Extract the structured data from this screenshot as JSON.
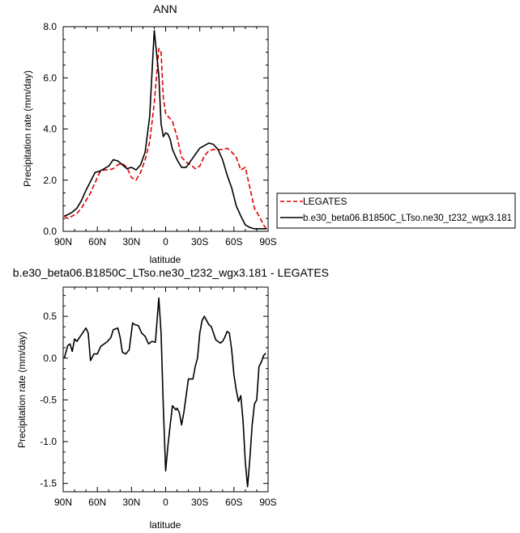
{
  "chart_data": [
    {
      "type": "line",
      "title": "ANN",
      "xlabel": "latitude",
      "ylabel": "Precipitation rate (mm/day)",
      "xlim": [
        90,
        -90
      ],
      "ylim": [
        0,
        8
      ],
      "xtick_values": [
        90,
        60,
        30,
        0,
        -30,
        -60,
        -90
      ],
      "xtick_labels": [
        "90N",
        "60N",
        "30N",
        "0",
        "30S",
        "60S",
        "90S"
      ],
      "ytick_values": [
        0,
        2,
        4,
        6,
        8
      ],
      "ytick_labels": [
        "0.0",
        "2.0",
        "4.0",
        "6.0",
        "8.0"
      ],
      "legend_position": "right",
      "grid": false,
      "series": [
        {
          "name": "LEGATES",
          "color": "#e00000",
          "dash": "dashed",
          "x": [
            89,
            86,
            82,
            78,
            74,
            70,
            66,
            62,
            58,
            54,
            50,
            46,
            42,
            38,
            34,
            30,
            26,
            22,
            18,
            14,
            10,
            6,
            4,
            2,
            0,
            -2,
            -4,
            -6,
            -10,
            -14,
            -18,
            -22,
            -26,
            -30,
            -34,
            -38,
            -42,
            -46,
            -50,
            -54,
            -58,
            -62,
            -66,
            -70,
            -74,
            -78,
            -82,
            -86,
            -89
          ],
          "y": [
            0.6,
            0.5,
            0.6,
            0.7,
            0.9,
            1.2,
            1.5,
            1.9,
            2.3,
            2.4,
            2.4,
            2.45,
            2.6,
            2.65,
            2.5,
            2.1,
            2.0,
            2.3,
            2.8,
            3.5,
            5.0,
            7.15,
            7.0,
            5.2,
            4.6,
            4.5,
            4.4,
            4.3,
            3.7,
            2.9,
            2.7,
            2.6,
            2.45,
            2.55,
            2.95,
            3.15,
            3.2,
            3.2,
            3.2,
            3.25,
            3.1,
            2.9,
            2.4,
            2.5,
            1.7,
            0.9,
            0.6,
            0.25,
            0.05
          ]
        },
        {
          "name": "b.e30_beta06.B1850C_LTso.ne30_t232_wgx3.181",
          "color": "#000000",
          "dash": "solid",
          "x": [
            89,
            86,
            82,
            78,
            74,
            70,
            66,
            62,
            58,
            54,
            50,
            46,
            42,
            38,
            34,
            30,
            26,
            22,
            18,
            14,
            10,
            6,
            4,
            2,
            0,
            -2,
            -4,
            -6,
            -10,
            -14,
            -18,
            -22,
            -26,
            -30,
            -34,
            -38,
            -42,
            -46,
            -50,
            -54,
            -58,
            -62,
            -66,
            -70,
            -74,
            -78,
            -82,
            -86,
            -89
          ],
          "y": [
            0.6,
            0.65,
            0.75,
            0.9,
            1.2,
            1.6,
            1.95,
            2.3,
            2.35,
            2.45,
            2.55,
            2.8,
            2.75,
            2.6,
            2.45,
            2.5,
            2.4,
            2.6,
            3.1,
            4.5,
            7.85,
            6.1,
            4.2,
            3.7,
            3.85,
            3.8,
            3.6,
            3.2,
            2.8,
            2.5,
            2.5,
            2.75,
            3.0,
            3.25,
            3.35,
            3.45,
            3.4,
            3.2,
            2.8,
            2.2,
            1.7,
            1.0,
            0.6,
            0.25,
            0.15,
            0.1,
            0.1,
            0.1,
            0.1
          ]
        }
      ]
    },
    {
      "type": "line",
      "title": "b.e30_beta06.B1850C_LTso.ne30_t232_wgx3.181 - LEGATES",
      "xlabel": "latitude",
      "ylabel": "Precipitation rate (mm/day)",
      "xlim": [
        90,
        -90
      ],
      "ylim": [
        -1.6,
        0.85
      ],
      "xtick_values": [
        90,
        60,
        30,
        0,
        -30,
        -60,
        -90
      ],
      "xtick_labels": [
        "90N",
        "60N",
        "30N",
        "0",
        "30S",
        "60S",
        "90S"
      ],
      "ytick_values": [
        0.5,
        0,
        -0.5,
        -1,
        -1.5
      ],
      "ytick_labels": [
        "0.5",
        "0.0",
        "-0.5",
        "-1.0",
        "-1.5"
      ],
      "grid": false,
      "series": [
        {
          "color": "#000000",
          "dash": "solid",
          "x": [
            89,
            86,
            84,
            82,
            80,
            78,
            74,
            70,
            68,
            66,
            63,
            60,
            57,
            54,
            51,
            48,
            46,
            42,
            40,
            38,
            35,
            32,
            29,
            27,
            24,
            21,
            18,
            15,
            12,
            9,
            6,
            4,
            2,
            0,
            -2,
            -4,
            -6,
            -9,
            -10,
            -12,
            -14,
            -16,
            -18,
            -20,
            -22,
            -24,
            -26,
            -28,
            -30,
            -32,
            -34,
            -36,
            -38,
            -40,
            -42,
            -44,
            -46,
            -48,
            -50,
            -52,
            -54,
            -56,
            -58,
            -60,
            -62,
            -64,
            -66,
            -68,
            -70,
            -72,
            -74,
            -76,
            -78,
            -80,
            -82,
            -84,
            -86,
            -88
          ],
          "y": [
            0.0,
            0.15,
            0.17,
            0.08,
            0.23,
            0.2,
            0.28,
            0.36,
            0.3,
            -0.03,
            0.05,
            0.05,
            0.14,
            0.17,
            0.2,
            0.25,
            0.34,
            0.36,
            0.25,
            0.07,
            0.05,
            0.1,
            0.42,
            0.4,
            0.39,
            0.3,
            0.26,
            0.17,
            0.2,
            0.19,
            0.72,
            0.3,
            -0.6,
            -1.35,
            -1.05,
            -0.8,
            -0.57,
            -0.62,
            -0.6,
            -0.65,
            -0.8,
            -0.65,
            -0.45,
            -0.25,
            -0.25,
            -0.25,
            -0.1,
            0.0,
            0.3,
            0.45,
            0.5,
            0.45,
            0.4,
            0.38,
            0.3,
            0.22,
            0.2,
            0.18,
            0.2,
            0.25,
            0.32,
            0.3,
            0.1,
            -0.2,
            -0.38,
            -0.52,
            -0.45,
            -0.75,
            -1.25,
            -1.54,
            -1.2,
            -0.8,
            -0.55,
            -0.5,
            -0.1,
            -0.05,
            0.03,
            0.06
          ]
        }
      ]
    }
  ]
}
